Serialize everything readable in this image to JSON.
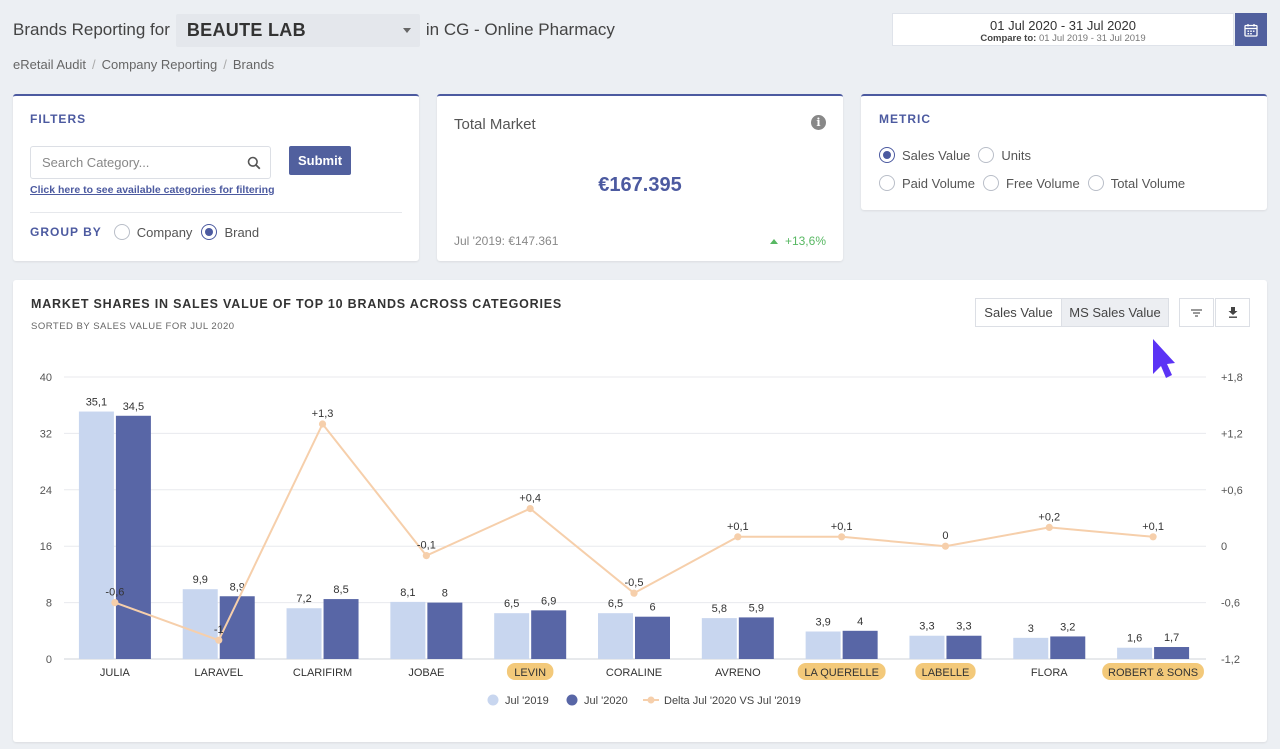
{
  "header": {
    "prefix": "Brands Reporting for",
    "brand": "BEAUTE LAB",
    "suffix": "in CG - Online Pharmacy"
  },
  "breadcrumb": [
    "eRetail Audit",
    "Company Reporting",
    "Brands"
  ],
  "date": {
    "range": "01 Jul 2020 - 31 Jul 2020",
    "compare_label": "Compare to:",
    "compare_range": "01 Jul 2019 - 31 Jul 2019"
  },
  "filters": {
    "title": "FILTERS",
    "search_placeholder": "Search Category...",
    "submit_label": "Submit",
    "link_text": "Click here to see available categories for filtering",
    "group_by_label": "GROUP BY",
    "group_options": [
      {
        "label": "Company",
        "selected": false
      },
      {
        "label": "Brand",
        "selected": true
      }
    ]
  },
  "total_market": {
    "title": "Total Market",
    "value": "€167.395",
    "previous": "Jul '2019: €147.361",
    "delta": "+13,6%"
  },
  "metric": {
    "title": "METRIC",
    "options": [
      {
        "label": "Sales Value",
        "selected": true
      },
      {
        "label": "Units",
        "selected": false
      },
      {
        "label": "Paid Volume",
        "selected": false
      },
      {
        "label": "Free Volume",
        "selected": false
      },
      {
        "label": "Total Volume",
        "selected": false
      }
    ]
  },
  "chart_panel": {
    "title": "MARKET SHARES IN SALES VALUE OF TOP 10 BRANDS ACROSS CATEGORIES",
    "subtitle": "SORTED BY SALES VALUE FOR JUL 2020",
    "toggle_sales": "Sales Value",
    "toggle_ms": "MS Sales Value",
    "active_toggle": "MS Sales Value"
  },
  "colors": {
    "accent": "#4c5aa0",
    "jul2019": "#c8d6ef",
    "jul2020": "#5866a6",
    "delta": "#f6cfab",
    "highlight": "#f3c97a",
    "positive": "#58b863",
    "cursor": "#5b33f5"
  },
  "chart_data": {
    "type": "bar",
    "categories": [
      "JULIA",
      "LARAVEL",
      "CLARIFIRM",
      "JOBAE",
      "LEVIN",
      "CORALINE",
      "AVRENO",
      "LA QUERELLE",
      "LABELLE",
      "FLORA",
      "ROBERT & SONS"
    ],
    "highlighted": [
      "LEVIN",
      "LA QUERELLE",
      "LABELLE",
      "ROBERT & SONS"
    ],
    "series": [
      {
        "name": "Jul '2019",
        "values": [
          35.1,
          9.9,
          7.2,
          8.1,
          6.5,
          6.5,
          5.8,
          3.9,
          3.3,
          3,
          1.6
        ],
        "labels": [
          "35,1",
          "9,9",
          "7,2",
          "8,1",
          "6,5",
          "6,5",
          "5,8",
          "3,9",
          "3,3",
          "3",
          "1,6"
        ]
      },
      {
        "name": "Jul '2020",
        "values": [
          34.5,
          8.9,
          8.5,
          8,
          6.9,
          6,
          5.9,
          4,
          3.3,
          3.2,
          1.7
        ],
        "labels": [
          "34,5",
          "8,9",
          "8,5",
          "8",
          "6,9",
          "6",
          "5,9",
          "4",
          "3,3",
          "3,2",
          "1,7"
        ]
      },
      {
        "name": "Delta Jul '2020 VS Jul '2019",
        "type": "line",
        "axis": "right",
        "values": [
          -0.6,
          -1,
          1.3,
          -0.1,
          0.4,
          -0.5,
          0.1,
          0.1,
          0,
          0.2,
          0.1
        ],
        "labels": [
          "-0,6",
          "-1",
          "+1,3",
          "-0,1",
          "+0,4",
          "-0,5",
          "+0,1",
          "+0,1",
          "0",
          "+0,2",
          "+0,1"
        ]
      }
    ],
    "ylim": [
      0,
      40
    ],
    "yticks": [
      "0",
      "8",
      "16",
      "24",
      "32",
      "40"
    ],
    "y2lim": [
      -1.2,
      1.8
    ],
    "y2ticks": [
      "-1,2",
      "-0,6",
      "0",
      "+0,6",
      "+1,2",
      "+1,8"
    ],
    "legend_position": "bottom",
    "grid": true
  }
}
